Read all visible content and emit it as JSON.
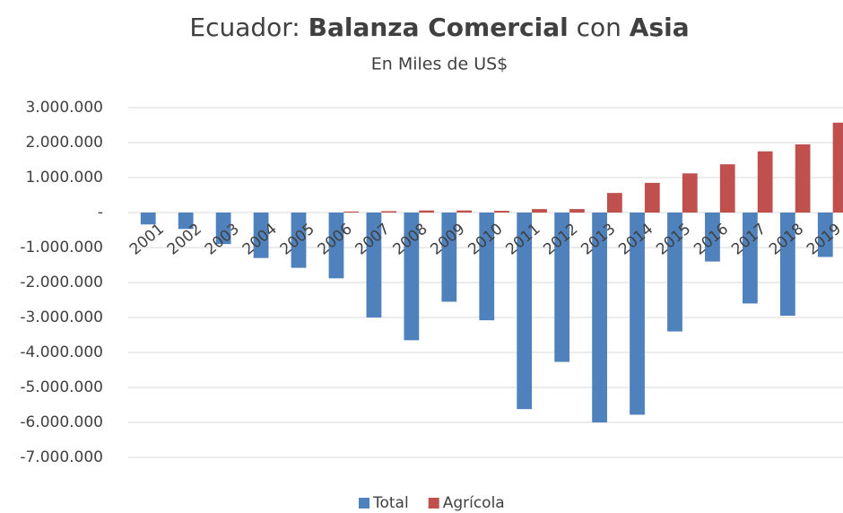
{
  "chart_data": {
    "type": "bar",
    "title": [
      {
        "text": "Ecuador: ",
        "bold": false
      },
      {
        "text": "Balanza Comercial",
        "bold": true
      },
      {
        "text": " con ",
        "bold": false
      },
      {
        "text": "Asia",
        "bold": true
      }
    ],
    "subtitle": "En Miles de US$",
    "categories": [
      "2001",
      "2002",
      "2003",
      "2004",
      "2005",
      "2006",
      "2007",
      "2008",
      "2009",
      "2010",
      "2011",
      "2012",
      "2013",
      "2014",
      "2015",
      "2016",
      "2017",
      "2018",
      "2019"
    ],
    "series": [
      {
        "name": "Total",
        "color": "#4f81bd",
        "values": [
          -340000,
          -470000,
          -900000,
          -1300000,
          -1580000,
          -1880000,
          -3000000,
          -3650000,
          -2550000,
          -3080000,
          -5620000,
          -4270000,
          -6000000,
          -5780000,
          -3400000,
          -1400000,
          -2600000,
          -2950000,
          -1270000
        ]
      },
      {
        "name": "Agrícola",
        "color": "#c0504d",
        "values": [
          0,
          0,
          0,
          0,
          0,
          30000,
          40000,
          60000,
          60000,
          50000,
          100000,
          100000,
          560000,
          850000,
          1120000,
          1380000,
          1750000,
          1950000,
          2570000
        ]
      }
    ],
    "ylim": [
      -7000000,
      3000000
    ],
    "yticks": [
      {
        "value": 3000000,
        "label": "3.000.000"
      },
      {
        "value": 2000000,
        "label": "2.000.000"
      },
      {
        "value": 1000000,
        "label": "1.000.000"
      },
      {
        "value": 0,
        "label": "-"
      },
      {
        "value": -1000000,
        "label": "-1.000.000"
      },
      {
        "value": -2000000,
        "label": "-2.000.000"
      },
      {
        "value": -3000000,
        "label": "-3.000.000"
      },
      {
        "value": -4000000,
        "label": "-4.000.000"
      },
      {
        "value": -5000000,
        "label": "-5.000.000"
      },
      {
        "value": -6000000,
        "label": "-6.000.000"
      },
      {
        "value": -7000000,
        "label": "-7.000.000"
      }
    ],
    "grid": true,
    "legend": "bottom"
  }
}
